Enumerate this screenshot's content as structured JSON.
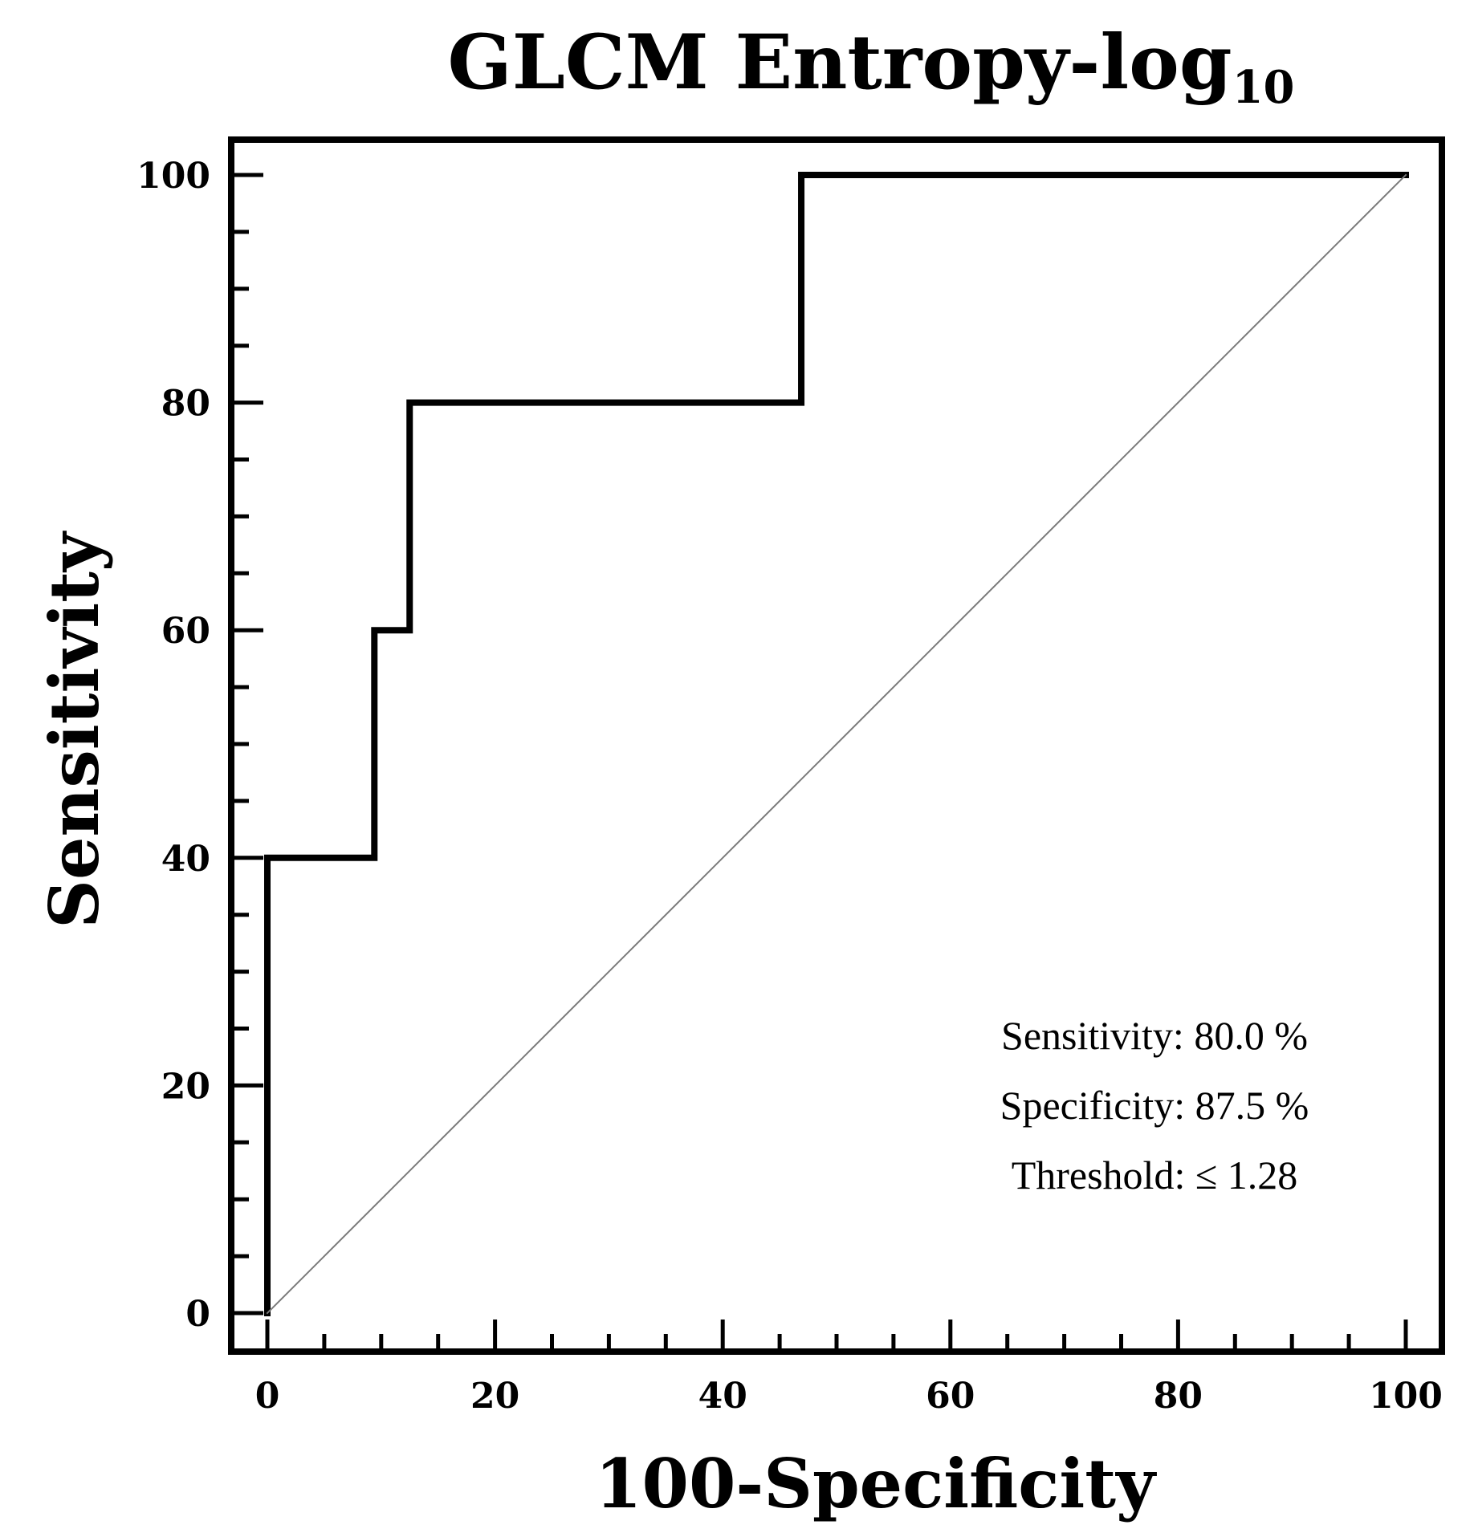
{
  "chart_data": {
    "type": "line",
    "title": "GLCM Entropy-log",
    "title_subscript": "10",
    "xlabel": "100-Specificity",
    "ylabel": "Sensitivity",
    "xlim": [
      0,
      100
    ],
    "ylim": [
      0,
      100
    ],
    "x_ticks": [
      "0",
      "20",
      "40",
      "60",
      "80",
      "100"
    ],
    "y_ticks": [
      "0",
      "20",
      "40",
      "60",
      "80",
      "100"
    ],
    "grid": false,
    "series": [
      {
        "style": "solid-thick",
        "x": [
          0,
          0,
          9.4,
          9.4,
          12.5,
          12.5,
          46.9,
          46.9,
          100
        ],
        "y": [
          0,
          40,
          40,
          60,
          60,
          80,
          80,
          100,
          100
        ]
      },
      {
        "style": "diagonal-reference",
        "x": [
          0,
          100
        ],
        "y": [
          0,
          100
        ]
      }
    ],
    "annotations": [
      "Sensitivity: 80.0 %",
      "Specificity: 87.5 %",
      "Threshold: ≤ 1.28"
    ],
    "colors": {
      "curve": "#000000",
      "reference": "#7a7a7a"
    }
  }
}
